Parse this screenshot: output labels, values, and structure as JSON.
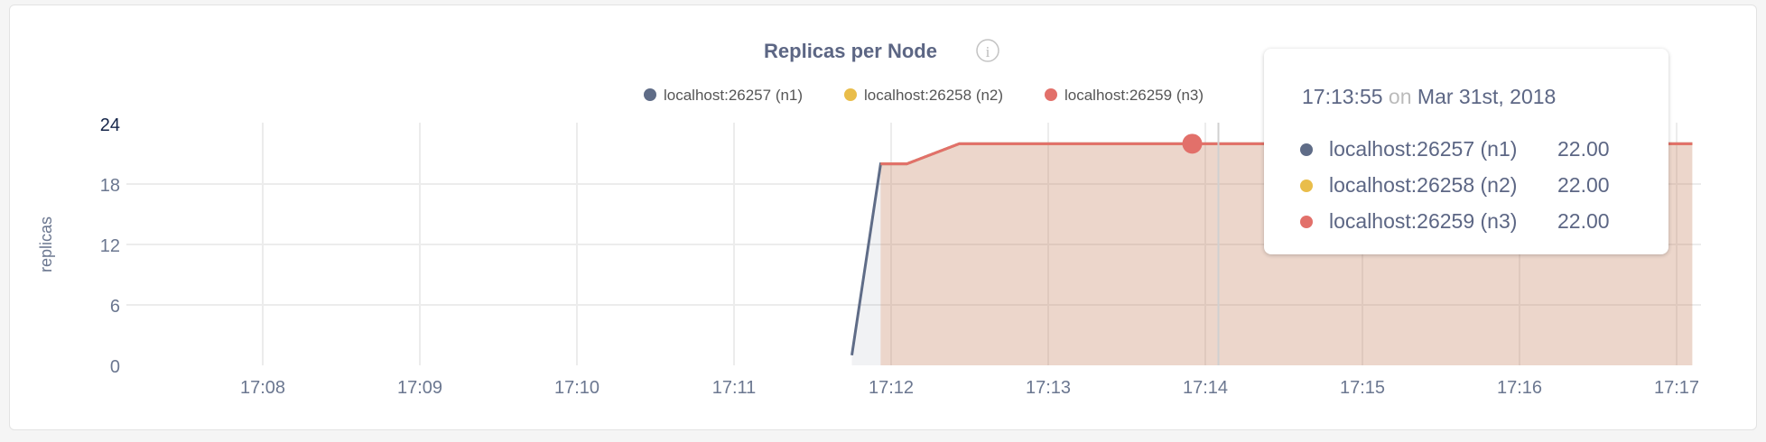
{
  "chart_data": {
    "type": "area",
    "title": "Replicas per Node",
    "ylabel": "replicas",
    "xlabel": "",
    "ylim": [
      0,
      24
    ],
    "yticks": [
      "0",
      "6",
      "12",
      "18",
      "24"
    ],
    "xticks": [
      "17:08",
      "17:09",
      "17:10",
      "17:11",
      "17:12",
      "17:13",
      "17:14",
      "17:15",
      "17:16",
      "17:17"
    ],
    "grid": true,
    "legend_position": "top-right",
    "series": [
      {
        "name": "localhost:26257 (n1)",
        "color": "#5f6c87",
        "points": [
          [
            "17:11:45",
            1
          ],
          [
            "17:11:56",
            20
          ],
          [
            "17:12:06",
            20
          ],
          [
            "17:12:26",
            22
          ],
          [
            "17:17:06",
            22
          ]
        ]
      },
      {
        "name": "localhost:26258 (n2)",
        "color": "#e9bd4a",
        "points": [
          [
            "17:11:56",
            20
          ],
          [
            "17:12:06",
            20
          ],
          [
            "17:12:26",
            22
          ],
          [
            "17:17:06",
            22
          ]
        ]
      },
      {
        "name": "localhost:26259 (n3)",
        "color": "#e2706a",
        "points": [
          [
            "17:11:56",
            20
          ],
          [
            "17:12:06",
            20
          ],
          [
            "17:12:26",
            22
          ],
          [
            "17:17:06",
            22
          ]
        ]
      }
    ],
    "hover": {
      "time": "17:13:55",
      "on": "on",
      "date": "Mar 31st, 2018",
      "values": [
        "22.00",
        "22.00",
        "22.00"
      ]
    }
  },
  "info_icon": "info-circle-icon"
}
